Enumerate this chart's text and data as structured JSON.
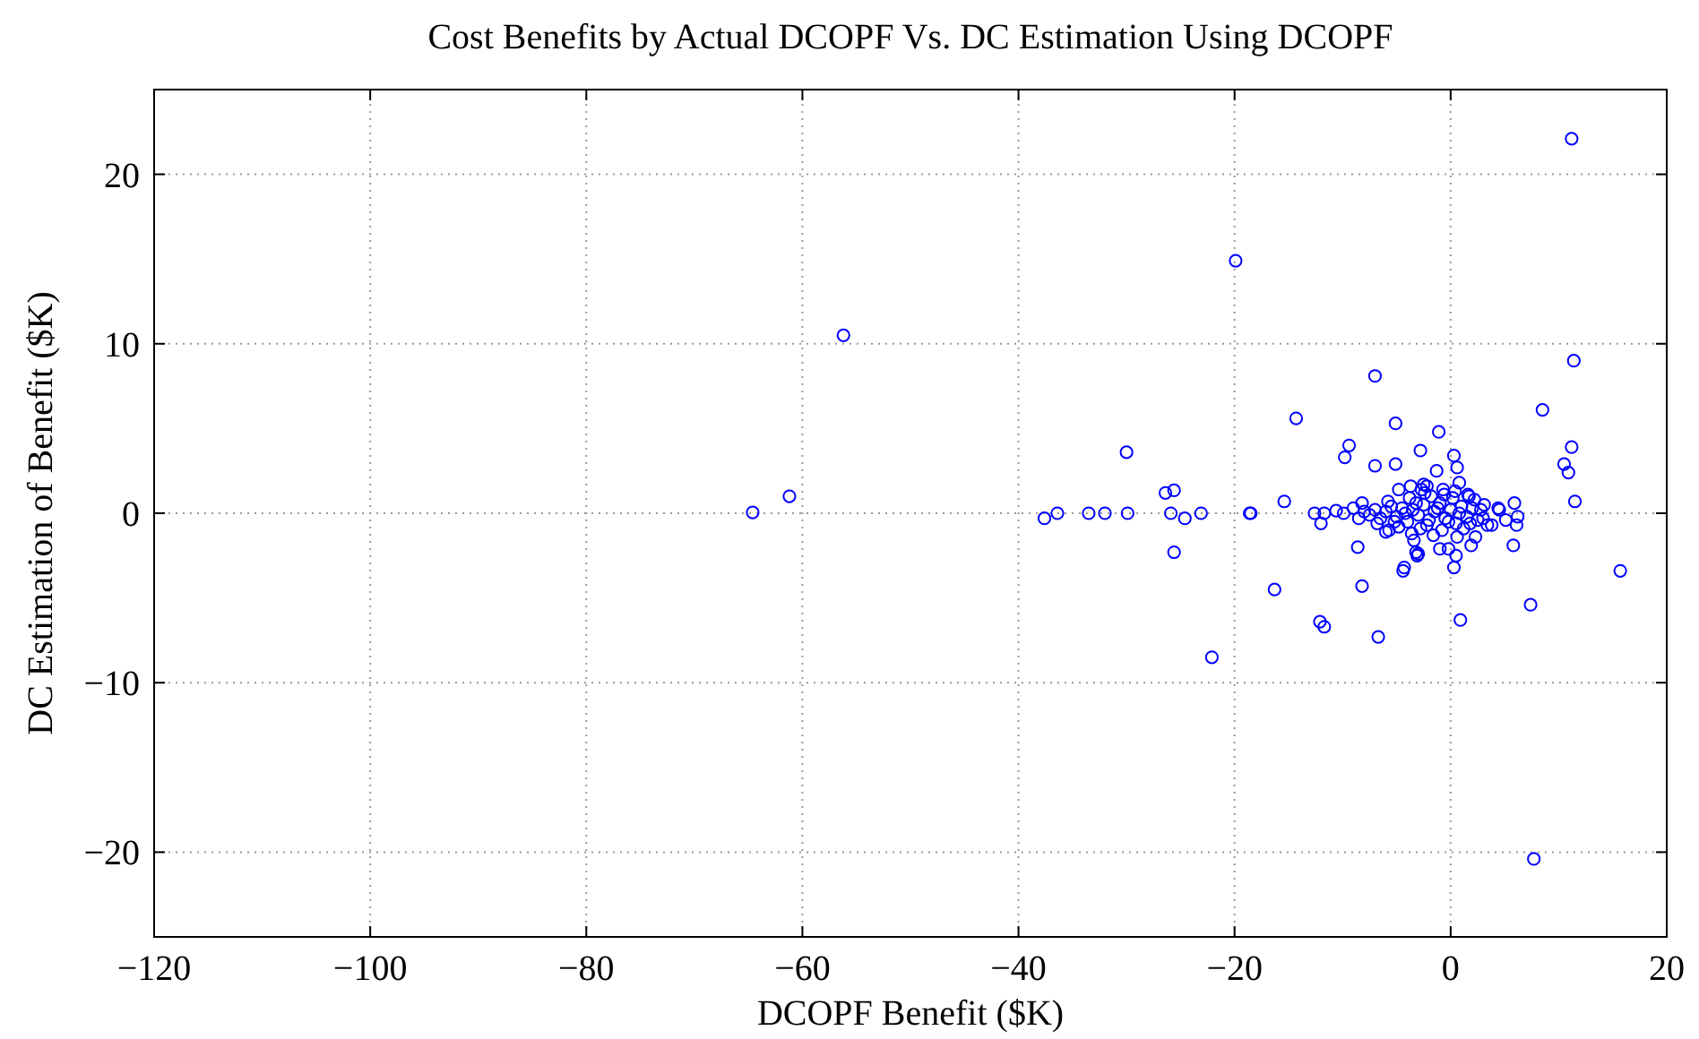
{
  "chart_data": {
    "type": "scatter",
    "title": "Cost Benefits by Actual DCOPF Vs. DC Estimation Using DCOPF",
    "xlabel": "DCOPF Benefit ($K)",
    "ylabel": "DC Estimation of Benefit ($K)",
    "xlim": [
      -120,
      20
    ],
    "ylim": [
      -25,
      25
    ],
    "xticks": [
      -120,
      -100,
      -80,
      -60,
      -40,
      -20,
      0,
      20
    ],
    "yticks": [
      -20,
      -10,
      0,
      10,
      20
    ],
    "grid": true,
    "marker": "circle",
    "series": [
      {
        "color": "#0000ff",
        "x": [
          -64.6,
          -61.2,
          -56.2,
          -19.9,
          -30.0,
          -37.6,
          -36.4,
          -33.5,
          -32.0,
          -29.9,
          -26.4,
          -25.6,
          -25.9,
          -24.6,
          -23.1,
          -25.6,
          -18.5,
          -15.4,
          -16.3,
          -22.1,
          -14.3,
          -18.6,
          -12.1,
          -11.7,
          -6.7,
          -8.2,
          -8.6,
          -5.1,
          -9.4,
          -9.8,
          -7.0,
          -5.1,
          -1.1,
          -2.8,
          0.3,
          0.6,
          -1.3,
          0.8,
          -4.8,
          -3.7,
          -2.5,
          8.5,
          11.2,
          10.5,
          10.9,
          11.5,
          15.7,
          7.4,
          0.9,
          -4.3,
          -4.4,
          0.3,
          0.5,
          5.8,
          5.9,
          6.1,
          4.4,
          -12.6,
          -11.7,
          -12.0,
          -10.6,
          -9.9,
          -9.0,
          -8.2,
          -6.0,
          -5.7,
          -3.4,
          -3.2,
          -3.1,
          -1.0,
          -0.2,
          1.9,
          2.3,
          3.4,
          3.1,
          -2.7,
          -2.2,
          -0.7,
          1.7,
          11.2,
          11.4,
          -7.0,
          7.7,
          6.2,
          -3.0,
          4.5,
          5.1,
          3.8,
          -7,
          -6.5,
          -6,
          -5.5,
          -5,
          -4.5,
          -4,
          -3.5,
          -3,
          -2.5,
          -2,
          -1.5,
          -1,
          -0.5,
          0,
          0.5,
          1,
          1.5,
          2,
          2.5,
          -6.8,
          -5.8,
          -4.8,
          -3.8,
          -2.8,
          -1.8,
          -0.8,
          0.2,
          1.2,
          2.2,
          -3.2,
          -2.2,
          -1.2,
          -0.2,
          0.8,
          1.8,
          -4.2,
          -5.2,
          -7.5,
          -8,
          -8.5,
          -1.6,
          0.4,
          -2.4,
          1.6,
          2.8,
          3,
          -0.6,
          -3.6,
          0.6
        ],
        "values": [
          0.05,
          1.0,
          10.5,
          14.9,
          3.6,
          -0.3,
          0,
          0,
          0,
          0,
          1.2,
          1.35,
          0,
          -0.3,
          0,
          -2.3,
          0,
          0.7,
          -4.5,
          -8.5,
          5.6,
          0,
          -6.4,
          -6.7,
          -7.3,
          -4.3,
          -2.0,
          5.3,
          4.0,
          3.3,
          2.8,
          2.9,
          4.8,
          3.7,
          3.4,
          2.7,
          2.5,
          1.8,
          1.4,
          1.6,
          1.7,
          6.1,
          3.9,
          2.9,
          2.4,
          0.7,
          -3.4,
          -5.4,
          -6.3,
          -3.2,
          -3.4,
          -3.2,
          -2.5,
          -1.9,
          0.6,
          -0.7,
          0.3,
          0,
          0,
          -0.6,
          0.15,
          0,
          0.3,
          0.6,
          -1.1,
          -1.0,
          -1.6,
          -2.3,
          -2.5,
          -2.1,
          -2.1,
          -1.9,
          -1.4,
          -0.7,
          0.5,
          1.4,
          1.6,
          1.4,
          1.0,
          22.1,
          9.0,
          8.1,
          -20.4,
          -0.2,
          -2.4,
          0.2,
          -0.4,
          -0.7,
          0.2,
          -0.3,
          0.1,
          0.4,
          -0.2,
          0.3,
          -0.5,
          0.2,
          -0.1,
          0.5,
          -0.4,
          0.1,
          0.6,
          -0.3,
          0.2,
          -0.6,
          0.4,
          -0.2,
          0.3,
          -0.4,
          -0.6,
          0.7,
          -0.8,
          0.9,
          -0.9,
          1.0,
          -1.0,
          0.9,
          -0.9,
          0.8,
          0.6,
          -0.7,
          0.3,
          -0.5,
          0,
          -0.6,
          0,
          -0.5,
          -0.1,
          0.1,
          -0.3,
          -1.3,
          1.3,
          1.2,
          1.1,
          0.2,
          -0.3,
          1.1,
          -1.2,
          -1.4
        ]
      }
    ]
  }
}
